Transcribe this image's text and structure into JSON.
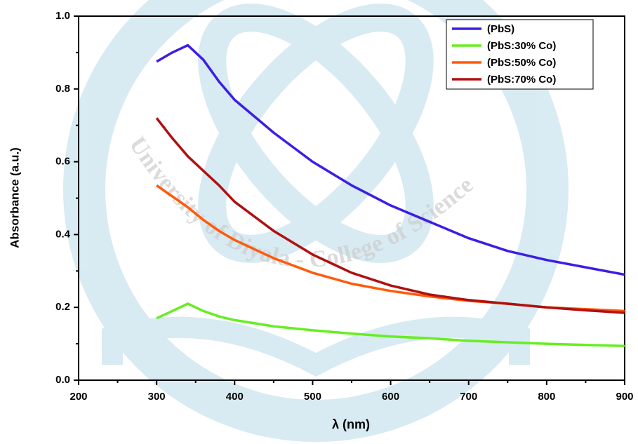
{
  "chart_data": {
    "type": "line",
    "xlabel": "λ (nm)",
    "ylabel": "Absorbance (a.u.)",
    "watermark": "University of Diyala - College of Science",
    "x": [
      300,
      320,
      340,
      360,
      380,
      400,
      450,
      500,
      550,
      600,
      650,
      700,
      750,
      800,
      850,
      900
    ],
    "series": [
      {
        "name": "(PbS)",
        "color": "#3b1ee6",
        "values": [
          0.875,
          0.9,
          0.92,
          0.88,
          0.82,
          0.77,
          0.68,
          0.6,
          0.535,
          0.48,
          0.435,
          0.39,
          0.355,
          0.33,
          0.31,
          0.29
        ]
      },
      {
        "name": "(PbS:30% Co)",
        "color": "#66ee22",
        "values": [
          0.17,
          0.19,
          0.21,
          0.19,
          0.175,
          0.165,
          0.148,
          0.137,
          0.128,
          0.12,
          0.115,
          0.108,
          0.104,
          0.1,
          0.097,
          0.094
        ]
      },
      {
        "name": "(PbS:50% Co)",
        "color": "#ff5a0a",
        "values": [
          0.535,
          0.505,
          0.475,
          0.44,
          0.41,
          0.385,
          0.335,
          0.295,
          0.265,
          0.245,
          0.23,
          0.218,
          0.21,
          0.2,
          0.195,
          0.19
        ]
      },
      {
        "name": "(PbS:70% Co)",
        "color": "#b01010",
        "values": [
          0.72,
          0.665,
          0.615,
          0.575,
          0.535,
          0.49,
          0.41,
          0.345,
          0.295,
          0.26,
          0.235,
          0.22,
          0.21,
          0.2,
          0.192,
          0.185
        ]
      }
    ],
    "xlim": [
      200,
      900
    ],
    "xticks": [
      200,
      300,
      400,
      500,
      600,
      700,
      800,
      900
    ],
    "ylim": [
      0,
      1
    ],
    "yticks": [
      {
        "value": 0,
        "label": "0.0"
      },
      0.2,
      0.4,
      0.6,
      0.8,
      {
        "value": 1,
        "label": "1.0"
      }
    ],
    "legend": "upper right"
  }
}
